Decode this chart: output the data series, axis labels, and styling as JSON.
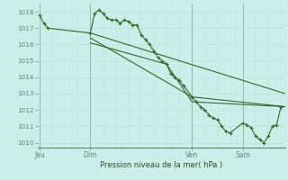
{
  "background_color": "#cceee8",
  "grid_color": "#b8ddd8",
  "line_color": "#2d6a2d",
  "ylabel_min": 1010,
  "ylabel_max": 1018,
  "xlabel": "Pression niveau de la mer( hPa )",
  "day_labels": [
    "Jeu",
    "Dim",
    "Ven",
    "Sam"
  ],
  "day_positions": [
    0,
    24,
    72,
    96
  ],
  "xmin": -1,
  "xmax": 116,
  "series1_x": [
    0,
    2,
    4,
    24,
    26,
    28,
    30,
    32,
    34,
    36,
    38,
    40,
    42,
    44,
    46,
    48,
    50,
    52,
    54,
    56,
    58,
    60,
    62,
    64,
    66,
    68,
    72,
    74,
    76,
    78,
    80,
    82,
    84,
    86,
    88,
    90,
    96,
    98,
    100,
    102,
    104,
    106,
    108,
    110,
    112,
    114
  ],
  "series1_y": [
    1017.8,
    1017.3,
    1017.0,
    1016.7,
    1017.9,
    1018.1,
    1017.9,
    1017.6,
    1017.5,
    1017.5,
    1017.3,
    1017.5,
    1017.4,
    1017.2,
    1017.2,
    1016.6,
    1016.3,
    1016.0,
    1015.6,
    1015.2,
    1015.0,
    1014.8,
    1014.2,
    1014.0,
    1013.8,
    1013.5,
    1012.8,
    1012.5,
    1012.2,
    1012.0,
    1011.7,
    1011.5,
    1011.4,
    1011.0,
    1010.7,
    1010.6,
    1011.2,
    1011.1,
    1010.9,
    1010.4,
    1010.2,
    1010.0,
    1010.4,
    1011.0,
    1011.1,
    1012.2
  ],
  "series2_x": [
    24,
    116
  ],
  "series2_y": [
    1016.7,
    1013.0
  ],
  "series3_x": [
    24,
    72,
    116
  ],
  "series3_y": [
    1016.4,
    1012.8,
    1012.2
  ],
  "series4_x": [
    24,
    60,
    72,
    116
  ],
  "series4_y": [
    1016.1,
    1014.8,
    1012.5,
    1012.2
  ]
}
